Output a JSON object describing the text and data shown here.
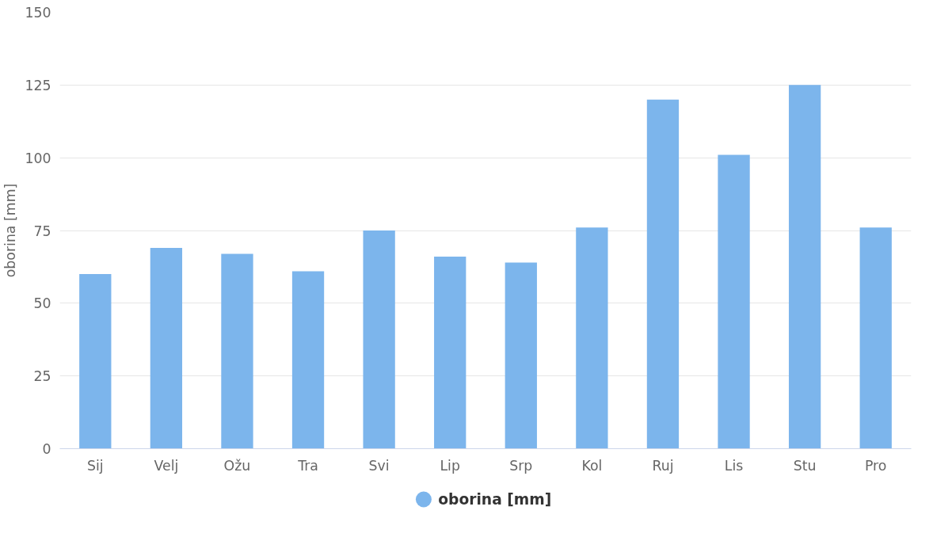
{
  "chart_data": {
    "type": "bar",
    "ylabel": "oborina [mm]",
    "categories": [
      "Sij",
      "Velj",
      "Ožu",
      "Tra",
      "Svi",
      "Lip",
      "Srp",
      "Kol",
      "Ruj",
      "Lis",
      "Stu",
      "Pro"
    ],
    "series": [
      {
        "name": "oborina [mm]",
        "color": "#7cb5ec",
        "values": [
          60,
          69,
          67,
          61,
          75,
          66,
          64,
          76,
          120,
          101,
          125,
          76
        ]
      }
    ],
    "ylim": [
      0,
      150
    ],
    "yticks": [
      0,
      25,
      50,
      75,
      100,
      125,
      150
    ],
    "grid": "y",
    "legend": "bottom"
  }
}
